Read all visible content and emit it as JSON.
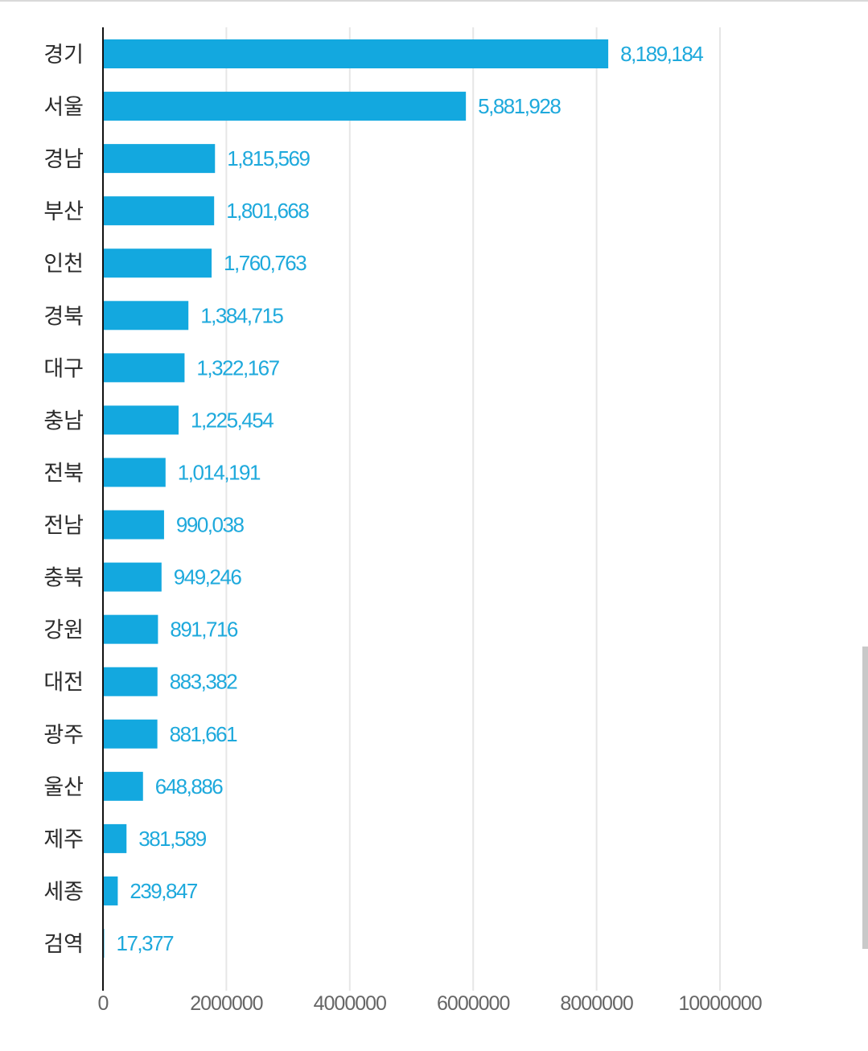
{
  "chart_data": {
    "type": "bar",
    "orientation": "horizontal",
    "categories": [
      "경기",
      "서울",
      "경남",
      "부산",
      "인천",
      "경북",
      "대구",
      "충남",
      "전북",
      "전남",
      "충북",
      "강원",
      "대전",
      "광주",
      "울산",
      "제주",
      "세종",
      "검역"
    ],
    "values": [
      8189184,
      5881928,
      1815569,
      1801668,
      1760763,
      1384715,
      1322167,
      1225454,
      1014191,
      990038,
      949246,
      891716,
      883382,
      881661,
      648886,
      381589,
      239847,
      17377
    ],
    "value_labels": [
      "8,189,184",
      "5,881,928",
      "1,815,569",
      "1,801,668",
      "1,760,763",
      "1,384,715",
      "1,322,167",
      "1,225,454",
      "1,014,191",
      "990,038",
      "949,246",
      "891,716",
      "883,382",
      "881,661",
      "648,886",
      "381,589",
      "239,847",
      "17,377"
    ],
    "x_ticks": [
      0,
      2000000,
      4000000,
      6000000,
      8000000,
      10000000
    ],
    "x_tick_labels": [
      "0",
      "2000000",
      "4000000",
      "6000000",
      "8000000",
      "10000000"
    ],
    "xlim": [
      0,
      10000000
    ],
    "grid": true,
    "bar_color": "#13a8df",
    "value_label_color": "#1ea9dc",
    "grid_color": "#e6e6e6"
  }
}
